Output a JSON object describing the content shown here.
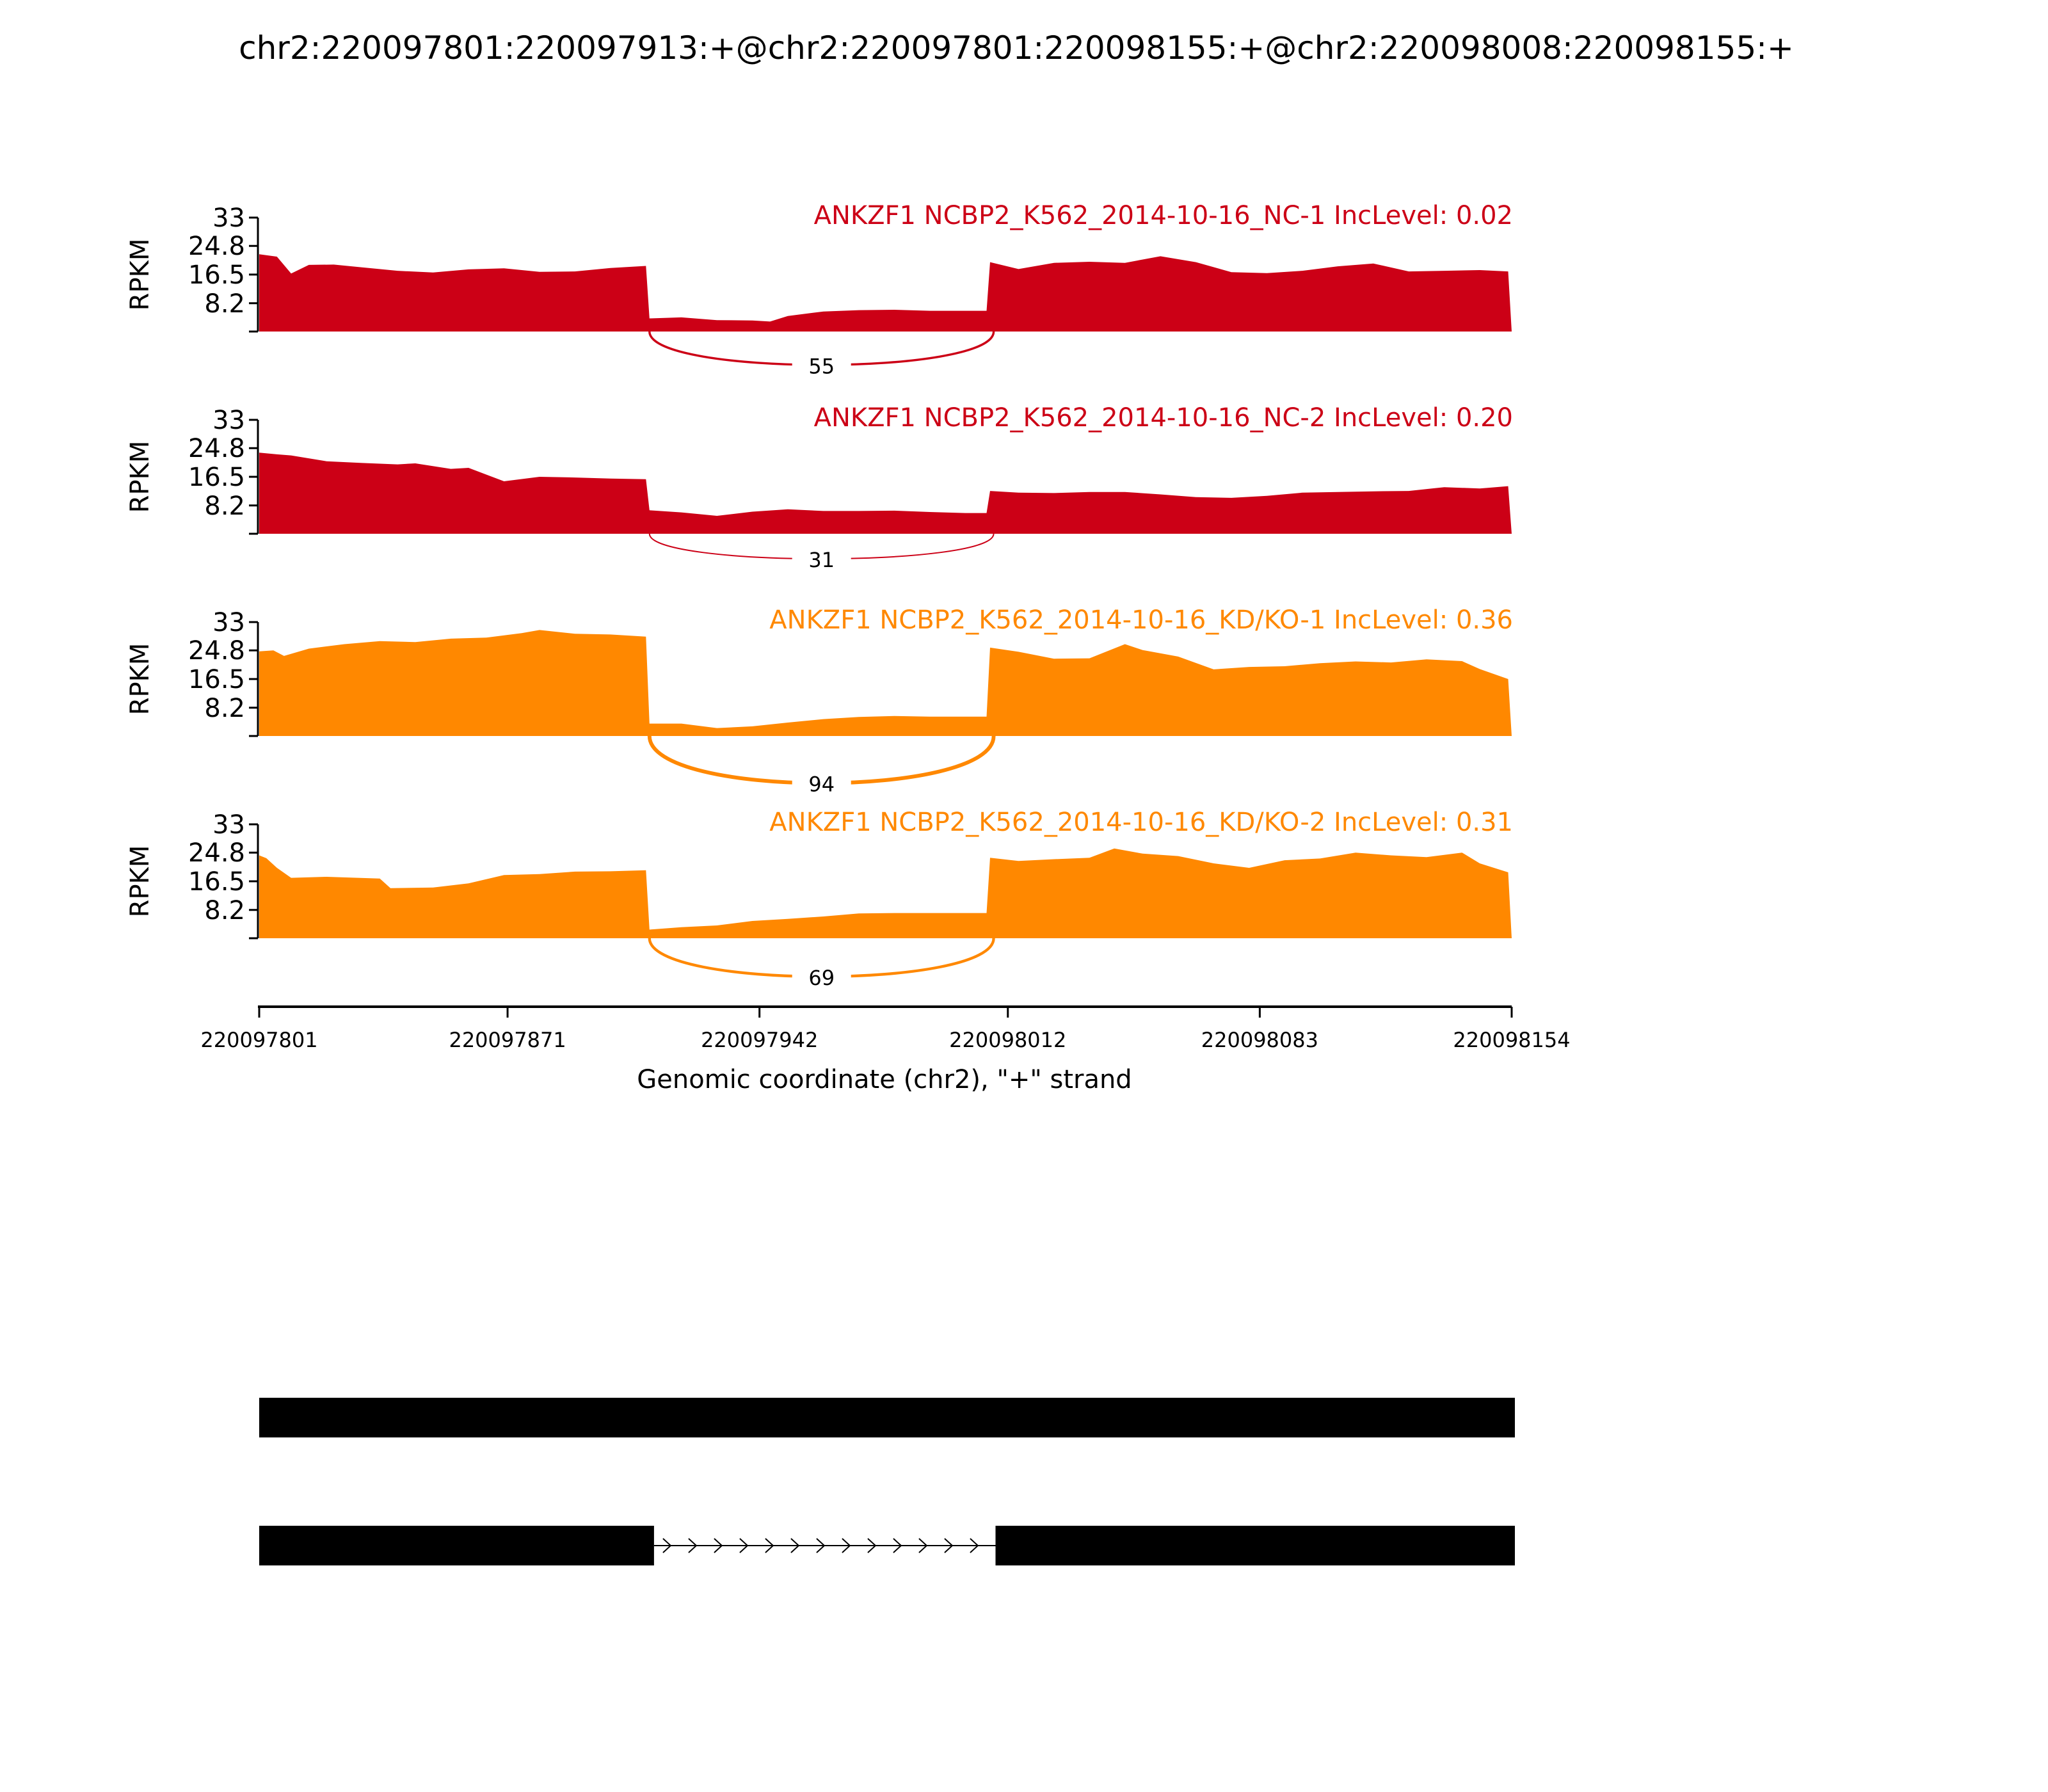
{
  "title": "chr2:220097801:220097913:+@chr2:220097801:220098155:+@chr2:220098008:220098155:+",
  "colors": {
    "nc": "#cc0016",
    "kd": "#ff8800",
    "axis": "#000000",
    "gene": "#000000"
  },
  "chart_data": [
    {
      "type": "area",
      "title": "ANKZF1 NCBP2_K562_2014-10-16_NC-1 IncLevel: 0.02",
      "group": "nc",
      "ylabel": "RPKM",
      "yticks": [
        "33",
        "24.8",
        "16.5",
        "8.2"
      ],
      "ylim": [
        0,
        33
      ],
      "xlim": [
        220097801,
        220098154
      ],
      "x": [
        220097801,
        220097806,
        220097810,
        220097815,
        220097822,
        220097830,
        220097840,
        220097850,
        220097860,
        220097870,
        220097880,
        220097890,
        220097900,
        220097910,
        220097911,
        220097920,
        220097930,
        220097940,
        220097945,
        220097950,
        220097960,
        220097970,
        220097980,
        220097990,
        220098000,
        220098006,
        220098007,
        220098015,
        220098025,
        220098035,
        220098045,
        220098055,
        220098065,
        220098075,
        220098085,
        220098095,
        220098105,
        220098115,
        220098125,
        220098135,
        220098145,
        220098153,
        220098154
      ],
      "values": [
        22.4,
        21.7,
        16.8,
        19.3,
        19.4,
        18.6,
        17.6,
        17.1,
        18,
        18.3,
        17.3,
        17.4,
        18.4,
        19,
        3.8,
        4.1,
        3.3,
        3.2,
        2.9,
        4.5,
        5.8,
        6.2,
        6.3,
        6,
        6,
        6,
        20.1,
        18.1,
        19.9,
        20.2,
        19.9,
        21.8,
        20.1,
        17.2,
        16.9,
        17.6,
        18.9,
        19.7,
        17.4,
        17.6,
        17.8,
        17.4,
        0
      ],
      "junction": {
        "from": 220097911,
        "to": 220098008,
        "count": "55"
      }
    },
    {
      "type": "area",
      "title": "ANKZF1 NCBP2_K562_2014-10-16_NC-2 IncLevel: 0.20",
      "group": "nc",
      "ylabel": "RPKM",
      "yticks": [
        "33",
        "24.8",
        "16.5",
        "8.2"
      ],
      "ylim": [
        0,
        33
      ],
      "xlim": [
        220097801,
        220098154
      ],
      "x": [
        220097801,
        220097806,
        220097810,
        220097820,
        220097830,
        220097840,
        220097845,
        220097855,
        220097860,
        220097870,
        220097880,
        220097890,
        220097900,
        220097910,
        220097911,
        220097920,
        220097930,
        220097940,
        220097950,
        220097960,
        220097970,
        220097980,
        220097990,
        220098000,
        220098006,
        220098007,
        220098015,
        220098025,
        220098035,
        220098045,
        220098055,
        220098065,
        220098075,
        220098085,
        220098095,
        220098105,
        220098115,
        220098125,
        220098135,
        220098145,
        220098153,
        220098154
      ],
      "values": [
        23.5,
        23,
        22.7,
        21,
        20.5,
        20.1,
        20.4,
        18.8,
        19.1,
        15.2,
        16.5,
        16.3,
        16,
        15.8,
        6.8,
        6.2,
        5.2,
        6.4,
        7.1,
        6.6,
        6.6,
        6.7,
        6.3,
        6,
        6,
        12.4,
        11.9,
        11.8,
        12.1,
        12.1,
        11.4,
        10.6,
        10.4,
        11,
        11.9,
        12.1,
        12.3,
        12.4,
        13.5,
        13.1,
        13.8,
        0
      ],
      "junction": {
        "from": 220097911,
        "to": 220098008,
        "count": "31"
      }
    },
    {
      "type": "area",
      "title": "ANKZF1 NCBP2_K562_2014-10-16_KD/KO-1 IncLevel: 0.36",
      "group": "kd",
      "ylabel": "RPKM",
      "yticks": [
        "33",
        "24.8",
        "16.5",
        "8.2"
      ],
      "ylim": [
        0,
        33
      ],
      "xlim": [
        220097801,
        220098154
      ],
      "x": [
        220097801,
        220097805,
        220097808,
        220097815,
        220097825,
        220097835,
        220097845,
        220097855,
        220097865,
        220097875,
        220097880,
        220097890,
        220097900,
        220097910,
        220097911,
        220097920,
        220097930,
        220097940,
        220097950,
        220097960,
        220097970,
        220097980,
        220097990,
        220098000,
        220098006,
        220098007,
        220098015,
        220098025,
        220098035,
        220098045,
        220098050,
        220098060,
        220098070,
        220098080,
        220098090,
        220098100,
        220098110,
        220098120,
        220098130,
        220098140,
        220098145,
        220098153,
        220098154
      ],
      "values": [
        24.5,
        24.8,
        23.2,
        25.3,
        26.6,
        27.5,
        27.2,
        28.2,
        28.5,
        29.8,
        30.7,
        29.6,
        29.4,
        28.8,
        3.6,
        3.6,
        2.3,
        2.8,
        3.9,
        4.9,
        5.5,
        5.8,
        5.6,
        5.6,
        5.6,
        25.6,
        24.4,
        22.4,
        22.5,
        26.6,
        24.9,
        23,
        19.3,
        20,
        20.2,
        21.1,
        21.6,
        21.3,
        22.2,
        21.7,
        19.4,
        16.5,
        0
      ],
      "junction": {
        "from": 220097911,
        "to": 220098008,
        "count": "94"
      }
    },
    {
      "type": "area",
      "title": "ANKZF1 NCBP2_K562_2014-10-16_KD/KO-2 IncLevel: 0.31",
      "group": "kd",
      "ylabel": "RPKM",
      "yticks": [
        "33",
        "24.8",
        "16.5",
        "8.2"
      ],
      "ylim": [
        0,
        33
      ],
      "xlim": [
        220097801,
        220098154
      ],
      "x": [
        220097801,
        220097803,
        220097806,
        220097810,
        220097820,
        220097835,
        220097838,
        220097850,
        220097860,
        220097870,
        220097880,
        220097890,
        220097900,
        220097910,
        220097911,
        220097920,
        220097930,
        220097940,
        220097950,
        220097960,
        220097970,
        220097980,
        220097990,
        220098000,
        220098006,
        220098007,
        220098015,
        220098025,
        220098035,
        220098042,
        220098050,
        220098060,
        220098070,
        220098080,
        220098090,
        220098100,
        220098110,
        220098120,
        220098130,
        220098140,
        220098145,
        220098153,
        220098154
      ],
      "values": [
        24,
        23.2,
        20.4,
        17.5,
        17.8,
        17.3,
        14.5,
        14.7,
        15.9,
        18.3,
        18.6,
        19.3,
        19.4,
        19.7,
        2.5,
        3.2,
        3.7,
        5,
        5.6,
        6.3,
        7.2,
        7.3,
        7.3,
        7.3,
        7.3,
        23.3,
        22.4,
        22.9,
        23.3,
        26,
        24.5,
        23.8,
        21.7,
        20.4,
        22.6,
        23.1,
        24.8,
        24,
        23.5,
        24.8,
        21.7,
        19.1,
        0
      ],
      "junction": {
        "from": 220097911,
        "to": 220098008,
        "count": "69"
      }
    }
  ],
  "x_axis": {
    "ticks": [
      {
        "value": 220097801,
        "label": "220097801"
      },
      {
        "value": 220097871,
        "label": "220097871"
      },
      {
        "value": 220097942,
        "label": "220097942"
      },
      {
        "value": 220098012,
        "label": "220098012"
      },
      {
        "value": 220098083,
        "label": "220098083"
      },
      {
        "value": 220098154,
        "label": "220098154"
      }
    ],
    "label": "Genomic coordinate (chr2), \"+\" strand"
  },
  "gene_models": [
    {
      "exons": [
        [
          220097801,
          220098154
        ]
      ]
    },
    {
      "exons": [
        [
          220097801,
          220097912
        ],
        [
          220098008,
          220098154
        ]
      ],
      "intron": [
        220097912,
        220098008
      ]
    }
  ]
}
